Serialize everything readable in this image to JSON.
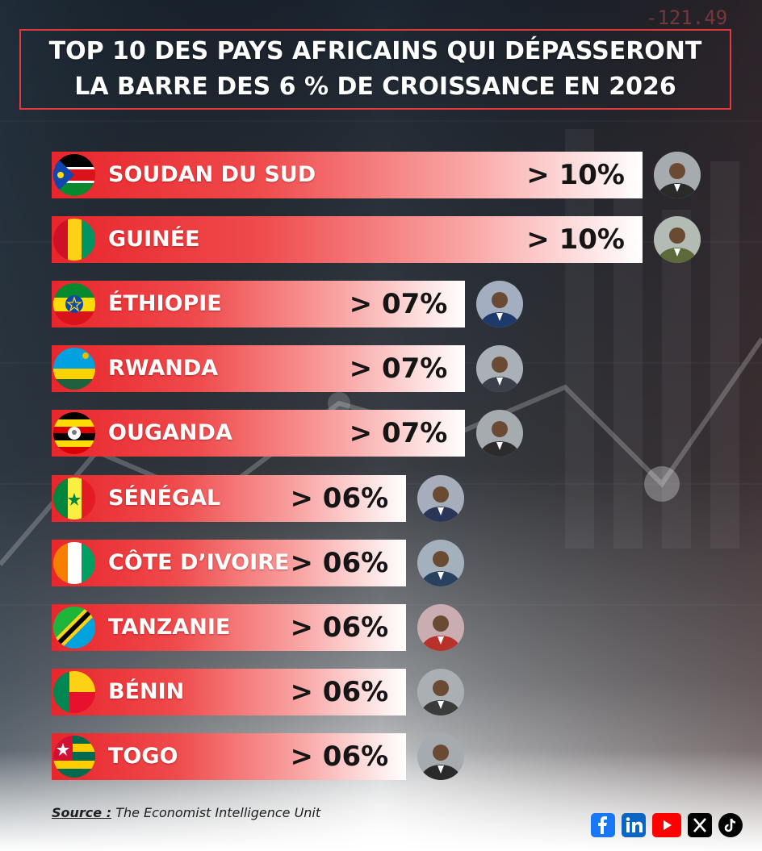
{
  "title": {
    "line1": "TOP 10 DES PAYS AFRICAINS QUI DÉPASSERONT",
    "line2": "LA BARRE DES 6 % DE CROISSANCE EN 2026"
  },
  "background": {
    "ticker_text": "-121.49"
  },
  "chart_data": {
    "type": "bar",
    "orientation": "horizontal",
    "categories": [
      "SOUDAN DU SUD",
      "GUINÉE",
      "ÉTHIOPIE",
      "RWANDA",
      "OUGANDA",
      "SÉNÉGAL",
      "CÔTE D’IVOIRE",
      "TANZANIE",
      "BÉNIN",
      "TOGO"
    ],
    "values": [
      10,
      10,
      7,
      7,
      7,
      6,
      6,
      6,
      6,
      6
    ],
    "value_labels": [
      "> 10%",
      "> 10%",
      "> 07%",
      "> 07%",
      "> 07%",
      "> 06%",
      "> 06%",
      "> 06%",
      "> 06%",
      "> 06%"
    ],
    "flag_icons": [
      "south-sudan-flag-icon",
      "guinea-flag-icon",
      "ethiopia-flag-icon",
      "rwanda-flag-icon",
      "uganda-flag-icon",
      "senegal-flag-icon",
      "cote-divoire-flag-icon",
      "tanzania-flag-icon",
      "benin-flag-icon",
      "togo-flag-icon"
    ],
    "leader_avatar_colors": [
      "#2a2a2a",
      "#5c6a3a",
      "#1e3a6b",
      "#3a3f4a",
      "#2c2c2c",
      "#2a3558",
      "#27415f",
      "#b8322a",
      "#3b3b3b",
      "#2a2a2a"
    ],
    "bar_gradient": [
      "#e8262c",
      "#ffffff"
    ]
  },
  "source": {
    "label": "Source :",
    "text": "The Economist Intelligence Unit"
  },
  "social": [
    {
      "name": "facebook-icon",
      "color": "#1877f2"
    },
    {
      "name": "linkedin-icon",
      "color": "#0a66c2"
    },
    {
      "name": "youtube-icon",
      "color": "#ff0000"
    },
    {
      "name": "x-icon",
      "color": "#000000"
    },
    {
      "name": "tiktok-icon",
      "color": "#000000"
    }
  ]
}
